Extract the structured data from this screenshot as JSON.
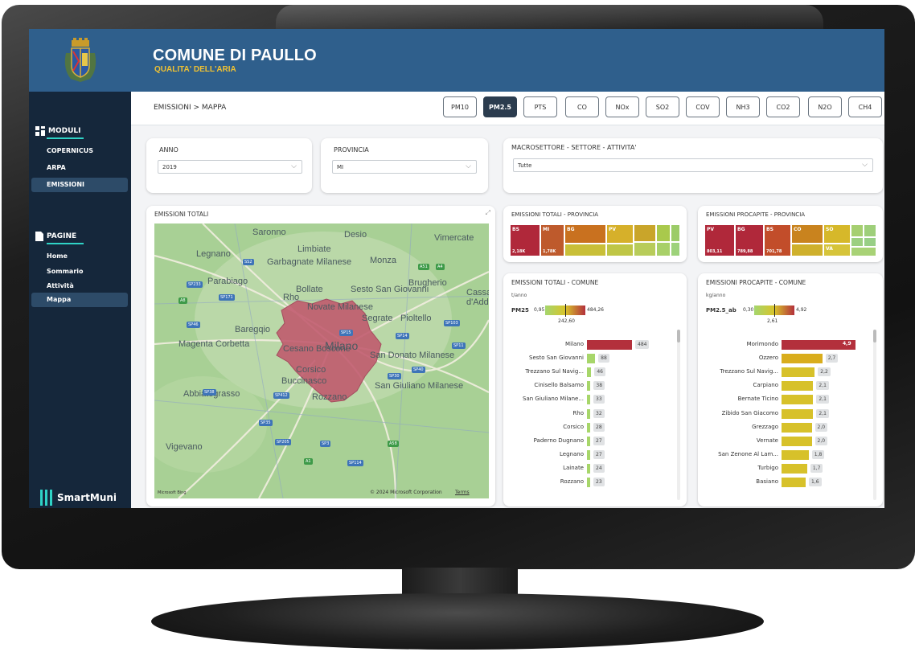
{
  "app": {
    "title": "COMUNE DI PAULLO",
    "subtitle": "QUALITA' DELL'ARIA",
    "brand": "SmartMuni"
  },
  "sidebar": {
    "moduli_label": "MODULI",
    "moduli": [
      {
        "label": "COPERNICUS",
        "active": false
      },
      {
        "label": "ARPA",
        "active": false
      },
      {
        "label": "EMISSIONI",
        "active": true
      }
    ],
    "pagine_label": "PAGINE",
    "pagine": [
      {
        "label": "Home",
        "active": false
      },
      {
        "label": "Sommario",
        "active": false
      },
      {
        "label": "Attività",
        "active": false
      },
      {
        "label": "Mappa",
        "active": true
      }
    ]
  },
  "breadcrumb": "EMISSIONI > MAPPA",
  "pollutants": [
    "PM10",
    "PM2.5",
    "PTS",
    "CO",
    "NOx",
    "SO2",
    "COV",
    "NH3",
    "CO2",
    "N2O",
    "CH4"
  ],
  "active_pollutant": "PM2.5",
  "filters": {
    "anno_label": "ANNO",
    "anno_value": "2019",
    "provincia_label": "PROVINCIA",
    "provincia_value": "MI",
    "macro_label": "MACROSETTORE - SETTORE - ATTIVITA'",
    "macro_value": "Tutte"
  },
  "map": {
    "title": "EMISSIONI TOTALI",
    "copyright": "© 2024 Microsoft Corporation",
    "terms": "Terms",
    "bing": "Microsoft Bing",
    "towns": [
      "Saronno",
      "Desio",
      "Vimercate",
      "Legnano",
      "Limbiate",
      "Monza",
      "Garbagnate Milanese",
      "Parabiago",
      "Bollate",
      "Sesto San Giovanni",
      "Brugherio",
      "Cassano d'Adda",
      "Rho",
      "Novate Milanese",
      "Segrate",
      "Pioltello",
      "Magenta",
      "Corbetta",
      "Baregqio",
      "Milano",
      "Cesano Boscone",
      "San Donato Milanese",
      "Corsico",
      "Buccinasco",
      "San Giuliano Milanese",
      "Abbiategrasso",
      "Rozzano",
      "Vigevano"
    ],
    "roads": [
      "SS2",
      "A51",
      "A4",
      "SP233",
      "SP171",
      "A8",
      "SP46",
      "SP15",
      "SP14",
      "SP103",
      "SP11",
      "SP40",
      "SP30",
      "SP38",
      "SP412",
      "SP35",
      "SP205",
      "SP3",
      "A58",
      "A1",
      "SP114"
    ]
  },
  "treemap_tot_prov": {
    "title": "EMISSIONI TOTALI - PROVINCIA",
    "cells": [
      {
        "label": "BS",
        "value": "2,18K",
        "color": "#b0283a"
      },
      {
        "label": "MI",
        "value": "1,78K",
        "color": "#be5a2c"
      },
      {
        "label": "BG",
        "value": "",
        "color": "#c9711f"
      },
      {
        "label": "PV",
        "value": "",
        "color": "#d6b02a"
      }
    ]
  },
  "treemap_pro_prov": {
    "title": "EMISSIONI PROCAPITE - PROVINCIA",
    "cells": [
      {
        "label": "PV",
        "value": "803,11",
        "color": "#b0283a"
      },
      {
        "label": "BG",
        "value": "789,88",
        "color": "#b0283a"
      },
      {
        "label": "BS",
        "value": "701,78",
        "color": "#c24d2a"
      },
      {
        "label": "CO",
        "value": "",
        "color": "#c9831e"
      },
      {
        "label": "SO",
        "value": "",
        "color": "#d6b82a"
      },
      {
        "label": "VA",
        "value": "",
        "color": "#d6c43a"
      }
    ]
  },
  "chart_data": [
    {
      "type": "bar",
      "title": "EMISSIONI TOTALI - COMUNE",
      "unit": "t/anno",
      "legend": {
        "metric": "PM25",
        "min": "0,95",
        "mid": "242,60",
        "max": "484,26"
      },
      "categories": [
        "Milano",
        "Sesto San Giovanni",
        "Trezzano Sul Navig...",
        "Cinisello Balsamo",
        "San Giuliano Milane...",
        "Rho",
        "Corsico",
        "Paderno Dugnano",
        "Legnano",
        "Lainate",
        "Rozzano"
      ],
      "values": [
        484,
        88,
        46,
        38,
        33,
        32,
        28,
        27,
        27,
        24,
        23
      ],
      "labels": [
        "484",
        "88",
        "46",
        "38",
        "33",
        "32",
        "28",
        "27",
        "27",
        "24",
        "23"
      ],
      "colors": [
        "#b3303c",
        "#a7d66a",
        "#a7d66a",
        "#a7d66a",
        "#a7d66a",
        "#a7d66a",
        "#a7d66a",
        "#a7d66a",
        "#a7d66a",
        "#a7d66a",
        "#a7d66a"
      ]
    },
    {
      "type": "bar",
      "title": "EMISSIONI PROCAPITE - COMUNE",
      "unit": "kg/anno",
      "legend": {
        "metric": "PM2.5_ab",
        "min": "0,30",
        "mid": "2,61",
        "max": "4,92"
      },
      "categories": [
        "Morimondo",
        "Ozzero",
        "Trezzano Sul Navig...",
        "Carpiano",
        "Bernate Ticino",
        "Zibido San Giacomo",
        "Grezzago",
        "Vernate",
        "San Zenone Al Lam...",
        "Turbigo",
        "Basiano"
      ],
      "values": [
        4.9,
        2.7,
        2.2,
        2.1,
        2.1,
        2.1,
        2.0,
        2.0,
        1.8,
        1.7,
        1.6
      ],
      "labels": [
        "4,9",
        "2,7",
        "2,2",
        "2,1",
        "2,1",
        "2,1",
        "2,0",
        "2,0",
        "1,8",
        "1,7",
        "1,6"
      ],
      "colors": [
        "#b3303c",
        "#d9ad1c",
        "#d7c12a",
        "#d7c12a",
        "#d7c12a",
        "#d7c12a",
        "#d7c12a",
        "#d7c12a",
        "#d7c12a",
        "#d7c12a",
        "#d7c12a"
      ]
    }
  ]
}
